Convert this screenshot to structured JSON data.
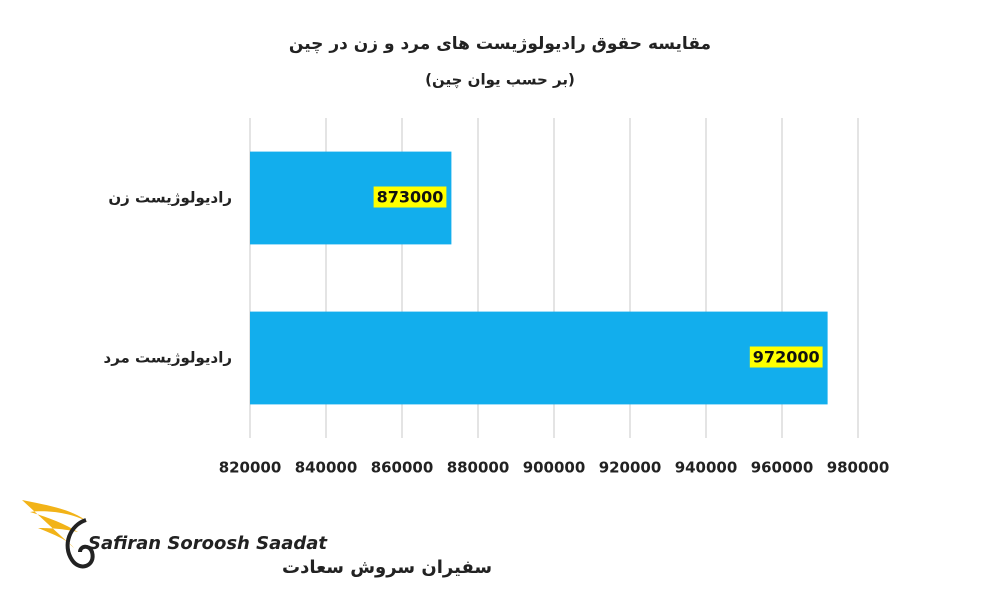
{
  "chart_data": {
    "type": "barh",
    "title": "مقایسه حقوق رادیولوژیست های مرد و زن در چین",
    "subtitle": "(بر حسب یوان چین)",
    "categories": [
      "رادیولوژیست زن",
      "رادیولوژیست مرد"
    ],
    "values": [
      873000,
      972000
    ],
    "color": "#12aeed",
    "xlim": [
      820000,
      980000
    ],
    "xticks": [
      820000,
      840000,
      860000,
      880000,
      900000,
      920000,
      940000,
      960000,
      980000
    ],
    "grid": true
  },
  "logo": {
    "latin": "Safiran Soroosh Saadat",
    "persian": "سفیران سروش سعادت"
  }
}
